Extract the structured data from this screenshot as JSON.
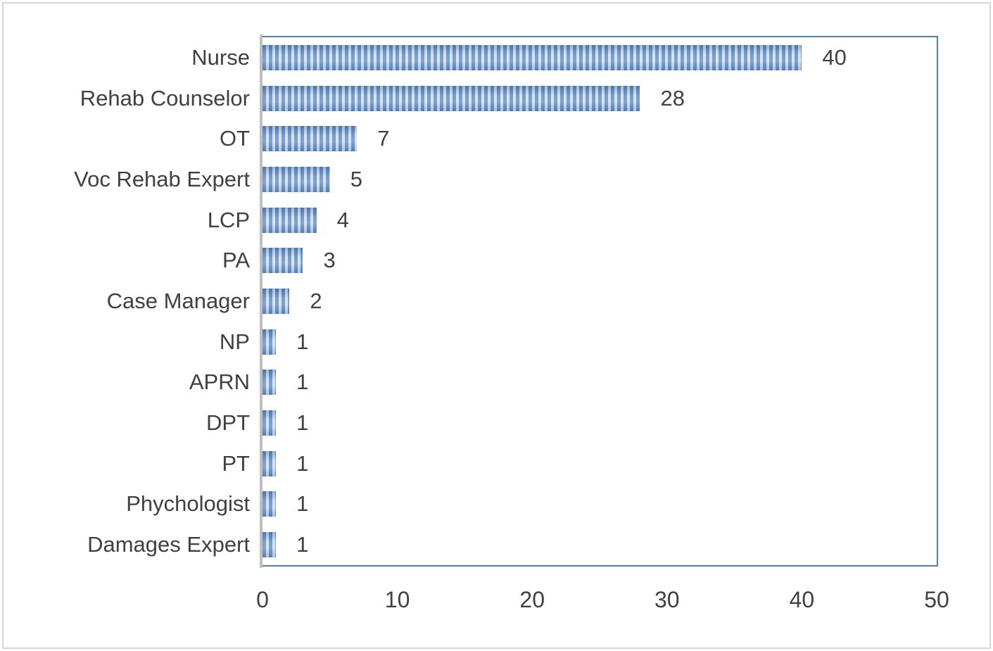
{
  "chart_data": {
    "type": "bar",
    "orientation": "horizontal",
    "title": "",
    "xlabel": "",
    "ylabel": "",
    "categories": [
      "Nurse",
      "Rehab Counselor",
      "OT",
      "Voc Rehab Expert",
      "LCP",
      "PA",
      "Case Manager",
      "NP",
      "APRN",
      "DPT",
      "PT",
      "Phychologist",
      "Damages Expert"
    ],
    "values": [
      40,
      28,
      7,
      5,
      4,
      3,
      2,
      1,
      1,
      1,
      1,
      1,
      1
    ],
    "data_labels": [
      "40",
      "28",
      "7",
      "5",
      "4",
      "3",
      "2",
      "1",
      "1",
      "1",
      "1",
      "1",
      "1"
    ],
    "xlim": [
      0,
      50
    ],
    "x_ticks": [
      "0",
      "10",
      "20",
      "30",
      "40",
      "50"
    ],
    "grid": false,
    "legend": false,
    "bar_fill_pattern": "vertical-stripes",
    "colors": {
      "stripe_dark": "#4f81bd",
      "stripe_light": "#ccdaee",
      "plot_border": "#4d7ebf",
      "axis_line": "#bfbfbf",
      "label_text": "#404040",
      "outer_border": "#d6d6d6",
      "background": "#ffffff"
    }
  }
}
